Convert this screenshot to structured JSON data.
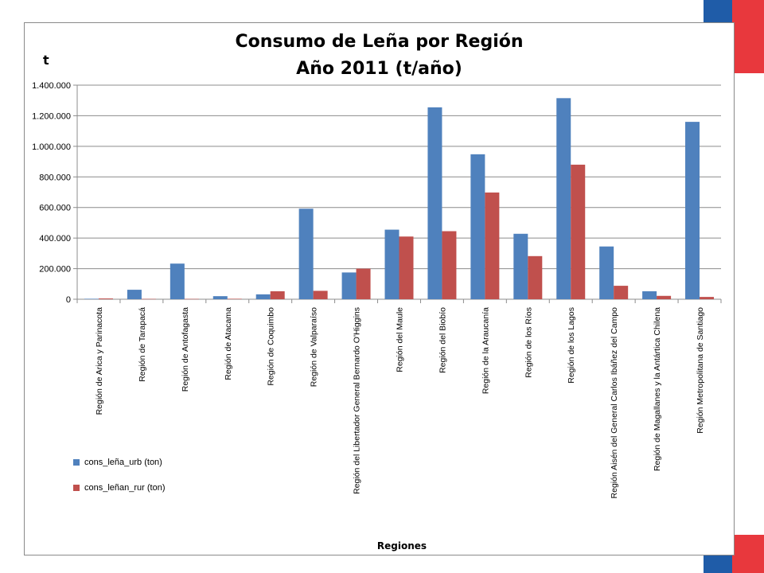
{
  "chart_data": {
    "type": "bar",
    "title_lines": [
      "Consumo de Leña por Región",
      "Año 2011 (t/año)"
    ],
    "ylabel": "t",
    "xlabel": "Regiones",
    "ylim": [
      0,
      1400000
    ],
    "yticks": [
      {
        "value": 0,
        "label": "0"
      },
      {
        "value": 200000,
        "label": "200.000"
      },
      {
        "value": 400000,
        "label": "400.000"
      },
      {
        "value": 600000,
        "label": "600.000"
      },
      {
        "value": 800000,
        "label": "800.000"
      },
      {
        "value": 1000000,
        "label": "1.000.000"
      },
      {
        "value": 1200000,
        "label": "1.200.000"
      },
      {
        "value": 1400000,
        "label": "1.400.000"
      }
    ],
    "grid": true,
    "legend_position": "bottom-left",
    "categories": [
      "Región de Arica y Parinacota",
      "Región de Tarapacá",
      "Región de Antofagasta",
      "Región de Atacama",
      "Región de Coquimbo",
      "Región de Valparaíso",
      "Región del Libertador General Bernardo O'Higgins",
      "Región del Maule",
      "Región del Biobío",
      "Región de la Araucanía",
      "Región de los Ríos",
      "Región de los Lagos",
      "Región Aisén del General Carlos Ibáñez del Campo",
      "Región de Magallanes y la Antártica Chilena",
      "Región Metropolitana de Santiago"
    ],
    "series": [
      {
        "name": "cons_leña_urb  (ton)",
        "color": "#4f81bd",
        "values": [
          3000,
          62000,
          233000,
          20000,
          32000,
          592000,
          175000,
          455000,
          1255000,
          948000,
          428000,
          1315000,
          345000,
          52000,
          1160000
        ]
      },
      {
        "name": "cons_leñan_rur  (ton)",
        "color": "#c0504d",
        "values": [
          5000,
          2000,
          2000,
          3000,
          52000,
          55000,
          200000,
          410000,
          445000,
          698000,
          282000,
          880000,
          88000,
          22000,
          15000
        ]
      }
    ]
  },
  "decor": {
    "flag_blue": "#1f5ca8",
    "flag_red": "#e8383d"
  }
}
